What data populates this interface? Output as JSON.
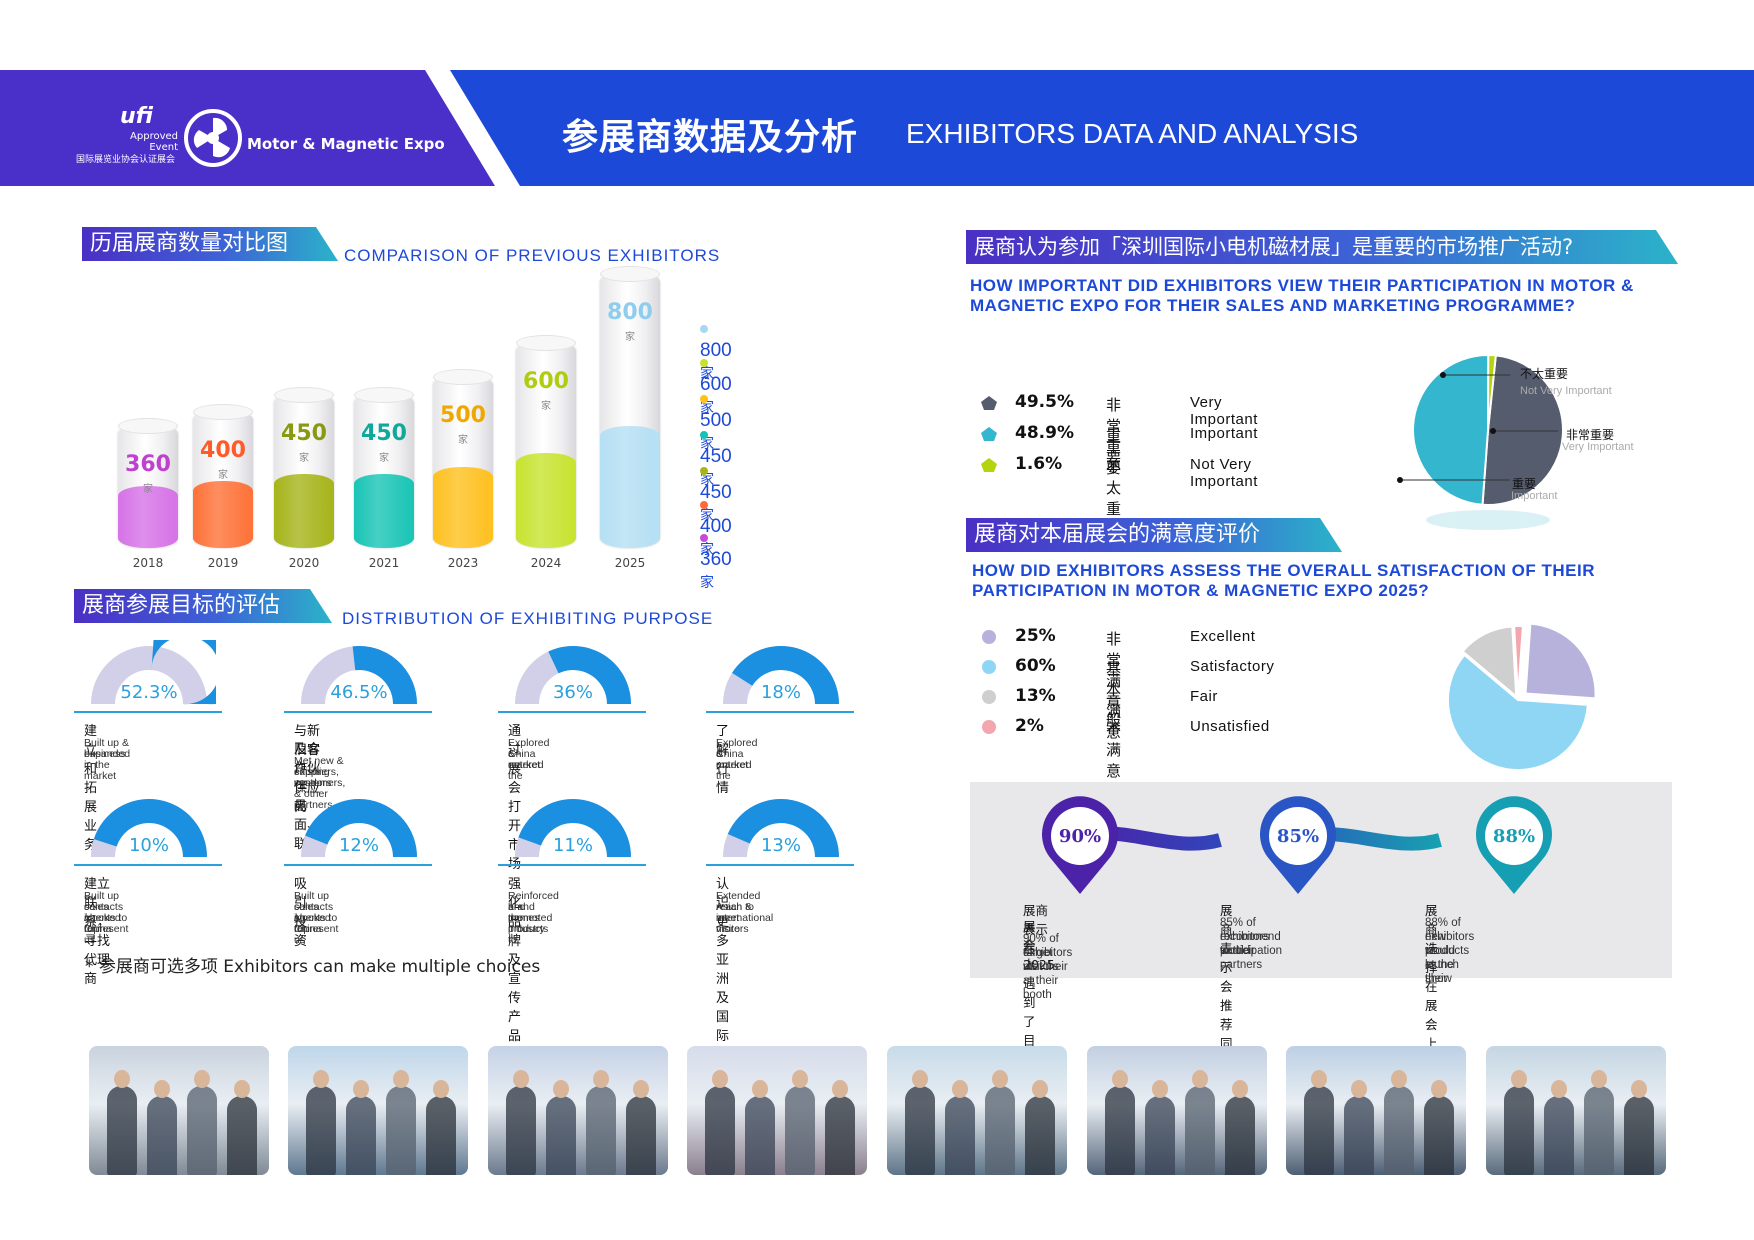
{
  "header": {
    "title_cn": "参展商数据及分析",
    "title_en": "EXHIBITORS DATA AND ANALYSIS",
    "logo_ufi": "ufi",
    "logo_approved": "Approved",
    "logo_event": "Event",
    "logo_cn": "国际展览业协会认证展会",
    "logo_expo": "Motor & Magnetic Expo"
  },
  "comparison": {
    "tag": "历届展商数量对比图",
    "subtitle": "COMPARISON OF PREVIOUS EXHIBITORS",
    "unit": "家",
    "legend": [
      {
        "value": "800",
        "color": "#a8d8f0"
      },
      {
        "value": "600",
        "color": "#c6e22c"
      },
      {
        "value": "500",
        "color": "#ffc21a"
      },
      {
        "value": "450",
        "color": "#18c2b5"
      },
      {
        "value": "450",
        "color": "#a8b418"
      },
      {
        "value": "400",
        "color": "#ff6a3a"
      },
      {
        "value": "360",
        "color": "#c64ad8"
      }
    ]
  },
  "chart_data": {
    "type": "bar",
    "categories": [
      "2018",
      "2019",
      "2020",
      "2021",
      "2023",
      "2024",
      "2025"
    ],
    "values": [
      360,
      400,
      450,
      450,
      500,
      600,
      800
    ],
    "colors": [
      "#d773e8",
      "#ff7238",
      "#a6b51a",
      "#19c5b6",
      "#ffc11f",
      "#c8e42f",
      "#b5e0f4"
    ],
    "label_colors": [
      "#c040d0",
      "#ff5a28",
      "#8a9a10",
      "#0fa99c",
      "#f0a800",
      "#b0cc10",
      "#8fcdee"
    ],
    "title": "COMPARISON OF PREVIOUS EXHIBITORS"
  },
  "purpose": {
    "tag": "展商参展目标的评估",
    "subtitle": "DISTRIBUTION OF EXHIBITING PURPOSE",
    "items": [
      {
        "pct": 52.3,
        "label": "52.3%",
        "cn": "建立和拓展业务",
        "en": [
          "Built up & expanded",
          "business in the market"
        ]
      },
      {
        "pct": 46.5,
        "label": "46.5%",
        "cn": "与新旧客户、供应商",
        "cn2": "及合作伙伴 见面、联系",
        "en": [
          "Met new & existing customers,",
          "suppliers, vendors & other partners"
        ]
      },
      {
        "pct": 36,
        "label": "36%",
        "cn": "通过展会打开市场",
        "en": [
          "Explored & entered the",
          "China market"
        ]
      },
      {
        "pct": 18,
        "label": "18%",
        "cn": "了解行情",
        "en": [
          "Explored & entered the",
          "China market"
        ]
      },
      {
        "pct": 10,
        "label": "10%",
        "cn": "建立联系，寻找代理商",
        "en": [
          "Built up contacts / looked for",
          "sales agents to represent  us",
          "in China"
        ]
      },
      {
        "pct": 12,
        "label": "12%",
        "cn": "吸引投资",
        "en": [
          "Built up contacts / looked for",
          "sales agents to represent  us",
          "in China"
        ]
      },
      {
        "pct": 11,
        "label": "11%",
        "cn": "强化品牌及宣传产品",
        "en": [
          "Reinforced brand names",
          "and promoted products to",
          "the industry"
        ]
      },
      {
        "pct": 13,
        "label": "13%",
        "cn": "认识更多亚洲及国际观众",
        "en": [
          "Extended reach to meet more",
          "Asian & international visitors"
        ]
      }
    ],
    "note": "*  参展商可选多项 Exhibitors can make multiple choices"
  },
  "importance": {
    "tag": "展商认为参加「深圳国际小电机磁材展」是重要的市场推广活动?",
    "subtitle1": "HOW IMPORTANT DID EXHIBITORS VIEW THEIR PARTICIPATION IN MOTOR &",
    "subtitle2": "MAGNETIC EXPO FOR THEIR SALES AND MARKETING PROGRAMME?",
    "rows": [
      {
        "pct": "49.5%",
        "cn": "非常重要",
        "en": "Very Important",
        "value": 49.5,
        "color": "#555c6e"
      },
      {
        "pct": "48.9%",
        "cn": "重要",
        "en": "Important",
        "value": 48.9,
        "color": "#34b6cf"
      },
      {
        "pct": "1.6%",
        "cn": "不太重要",
        "en": "Not Very Important",
        "value": 1.6,
        "color": "#b5d30f"
      }
    ],
    "annotations": [
      {
        "cn": "不太重要",
        "en": "Not Very Important"
      },
      {
        "cn": "非常重要",
        "en": "Very Important"
      },
      {
        "cn": "重要",
        "en": "Important"
      }
    ]
  },
  "satisfaction": {
    "tag": "展商对本届展会的满意度评价",
    "subtitle1": "HOW DID EXHIBITORS ASSESS THE OVERALL SATISFACTION OF THEIR",
    "subtitle2": "PARTICIPATION IN MOTOR & MAGNETIC EXPO 2025?",
    "rows": [
      {
        "pct": "25%",
        "cn": "非常满意",
        "en": "Excellent",
        "value": 25,
        "color": "#b7b2dc"
      },
      {
        "pct": "60%",
        "cn": "基本满意",
        "en": "Satisfactory",
        "value": 60,
        "color": "#8fd6f4"
      },
      {
        "pct": "13%",
        "cn": "一般",
        "en": "Fair",
        "value": 13,
        "color": "#cfcfcf"
      },
      {
        "pct": "2%",
        "cn": "不满意",
        "en": "Unsatisfied",
        "value": 2,
        "color": "#f4a6ae"
      }
    ]
  },
  "highlights": [
    {
      "pct": "90%",
      "cn1": "展商表示在2025",
      "cn2": "展会上遇到了目标客户",
      "en": [
        "90% of exhibitors met their",
        "target visitors at their booth"
      ]
    },
    {
      "pct": "85%",
      "cn1": "展商表示会推荐同行来参展",
      "en": [
        "85% of exhibitors would",
        "recommend participation",
        "to their partners"
      ]
    },
    {
      "pct": "88%",
      "cn1": "展商选择在展会上发布新产品",
      "en": [
        "88% of exhibitors would launch their",
        "new products at the show"
      ]
    }
  ]
}
